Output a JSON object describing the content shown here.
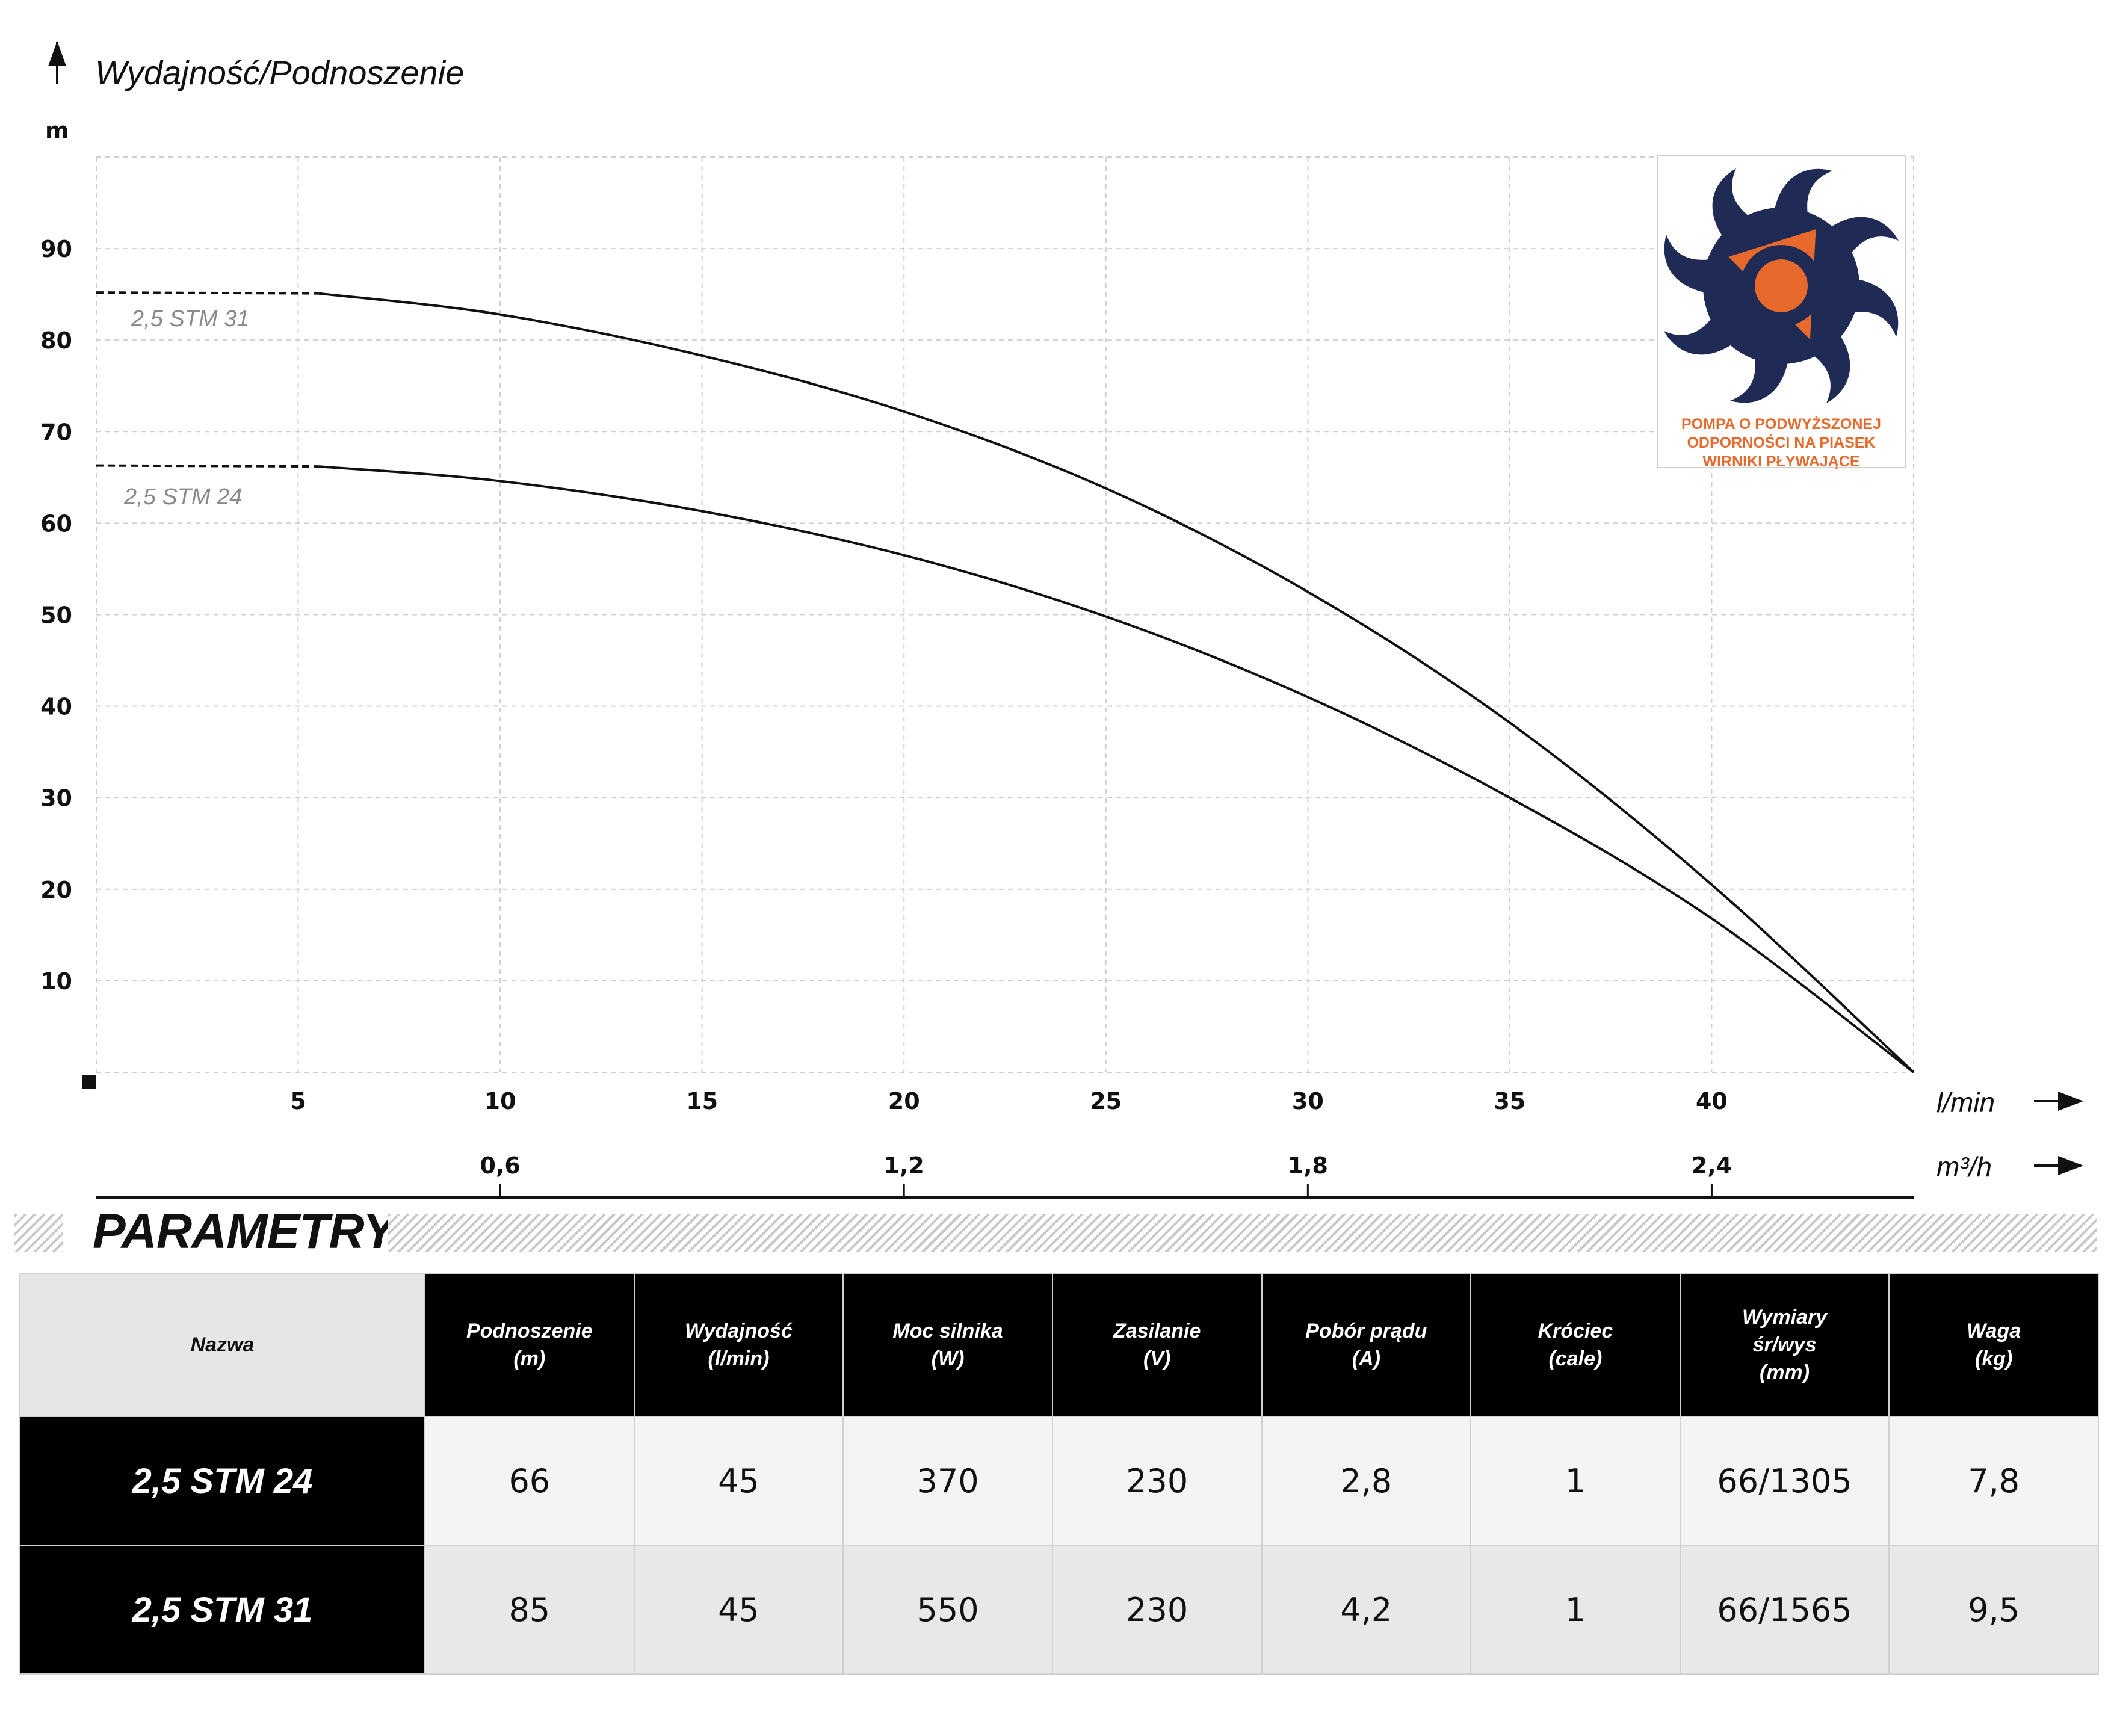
{
  "chart_data": {
    "type": "line",
    "ylabel": "Wydajność/Podnoszenie",
    "yunit": "m",
    "xunit_primary": "l/min",
    "xunit_secondary": "m³/h",
    "xlim": [
      0,
      45
    ],
    "ylim": [
      0,
      100
    ],
    "yticks": [
      10,
      20,
      30,
      40,
      50,
      60,
      70,
      80,
      90
    ],
    "xticks": [
      5,
      10,
      15,
      20,
      25,
      30,
      35,
      40
    ],
    "xticks_secondary": [
      {
        "at_lmin": 10,
        "label": "0,6"
      },
      {
        "at_lmin": 20,
        "label": "1,2"
      },
      {
        "at_lmin": 30,
        "label": "1,8"
      },
      {
        "at_lmin": 40,
        "label": "2,4"
      }
    ],
    "grid": true,
    "series": [
      {
        "name": "2,5 STM 31",
        "dashed_until": 5.5,
        "x": [
          0,
          5.5,
          10,
          15,
          20,
          25,
          30,
          35,
          40,
          45
        ],
        "y": [
          85.2,
          85.1,
          82.8,
          78.3,
          72.2,
          63.8,
          52.5,
          38.2,
          20.5,
          0
        ]
      },
      {
        "name": "2,5 STM 24",
        "dashed_until": 5.5,
        "x": [
          0,
          5.5,
          10,
          15,
          20,
          25,
          30,
          35,
          40,
          45
        ],
        "y": [
          66.3,
          66.2,
          64.6,
          61.3,
          56.5,
          49.8,
          41.0,
          30.0,
          16.8,
          0
        ]
      }
    ]
  },
  "badge": {
    "lines": [
      "POMPA O PODWYŻSZONEJ",
      "ODPORNOŚCI NA PIASEK",
      "WIRNIKI PŁYWAJĄCE"
    ],
    "accent_color": "#e8692c",
    "impeller_color": "#1f2a55"
  },
  "params": {
    "title": "PARAMETRY",
    "headers": [
      {
        "l1": "Nazwa",
        "l2": "",
        "l3": ""
      },
      {
        "l1": "Podnoszenie",
        "l2": "(m)",
        "l3": ""
      },
      {
        "l1": "Wydajność",
        "l2": "(l/min)",
        "l3": ""
      },
      {
        "l1": "Moc silnika",
        "l2": "(W)",
        "l3": ""
      },
      {
        "l1": "Zasilanie",
        "l2": "(V)",
        "l3": ""
      },
      {
        "l1": "Pobór prądu",
        "l2": "(A)",
        "l3": ""
      },
      {
        "l1": "Króciec",
        "l2": "(cale)",
        "l3": ""
      },
      {
        "l1": "Wymiary",
        "l2": "śr/wys",
        "l3": "(mm)"
      },
      {
        "l1": "Waga",
        "l2": "(kg)",
        "l3": ""
      }
    ],
    "rows": [
      [
        "2,5 STM 24",
        "66",
        "45",
        "370",
        "230",
        "2,8",
        "1",
        "66/1305",
        "7,8"
      ],
      [
        "2,5 STM 31",
        "85",
        "45",
        "550",
        "230",
        "4,2",
        "1",
        "66/1565",
        "9,5"
      ]
    ]
  }
}
